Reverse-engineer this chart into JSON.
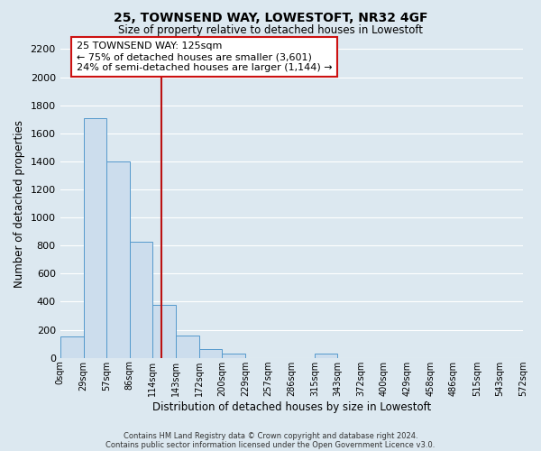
{
  "title": "25, TOWNSEND WAY, LOWESTOFT, NR32 4GF",
  "subtitle": "Size of property relative to detached houses in Lowestoft",
  "xlabel": "Distribution of detached houses by size in Lowestoft",
  "ylabel": "Number of detached properties",
  "bar_color": "#ccdded",
  "bar_edge_color": "#5599cc",
  "background_color": "#dce8f0",
  "plot_bg_color": "#dce8f0",
  "grid_color": "#ffffff",
  "annotation_box_edge": "#cc1111",
  "annotation_box_face": "#ffffff",
  "vline_color": "#bb1111",
  "vline_x": 125,
  "annotation_title": "25 TOWNSEND WAY: 125sqm",
  "annotation_line1": "← 75% of detached houses are smaller (3,601)",
  "annotation_line2": "24% of semi-detached houses are larger (1,144) →",
  "footer1": "Contains HM Land Registry data © Crown copyright and database right 2024.",
  "footer2": "Contains public sector information licensed under the Open Government Licence v3.0.",
  "bin_edges": [
    0,
    29,
    57,
    86,
    114,
    143,
    172,
    200,
    229,
    257,
    286,
    315,
    343,
    372,
    400,
    429,
    458,
    486,
    515,
    543,
    572
  ],
  "bin_labels": [
    "0sqm",
    "29sqm",
    "57sqm",
    "86sqm",
    "114sqm",
    "143sqm",
    "172sqm",
    "200sqm",
    "229sqm",
    "257sqm",
    "286sqm",
    "315sqm",
    "343sqm",
    "372sqm",
    "400sqm",
    "429sqm",
    "458sqm",
    "486sqm",
    "515sqm",
    "543sqm",
    "572sqm"
  ],
  "bar_heights": [
    155,
    1710,
    1400,
    830,
    380,
    160,
    65,
    30,
    0,
    0,
    0,
    30,
    0,
    0,
    0,
    0,
    0,
    0,
    0,
    0
  ],
  "ylim": [
    0,
    2200
  ],
  "yticks": [
    0,
    200,
    400,
    600,
    800,
    1000,
    1200,
    1400,
    1600,
    1800,
    2000,
    2200
  ]
}
